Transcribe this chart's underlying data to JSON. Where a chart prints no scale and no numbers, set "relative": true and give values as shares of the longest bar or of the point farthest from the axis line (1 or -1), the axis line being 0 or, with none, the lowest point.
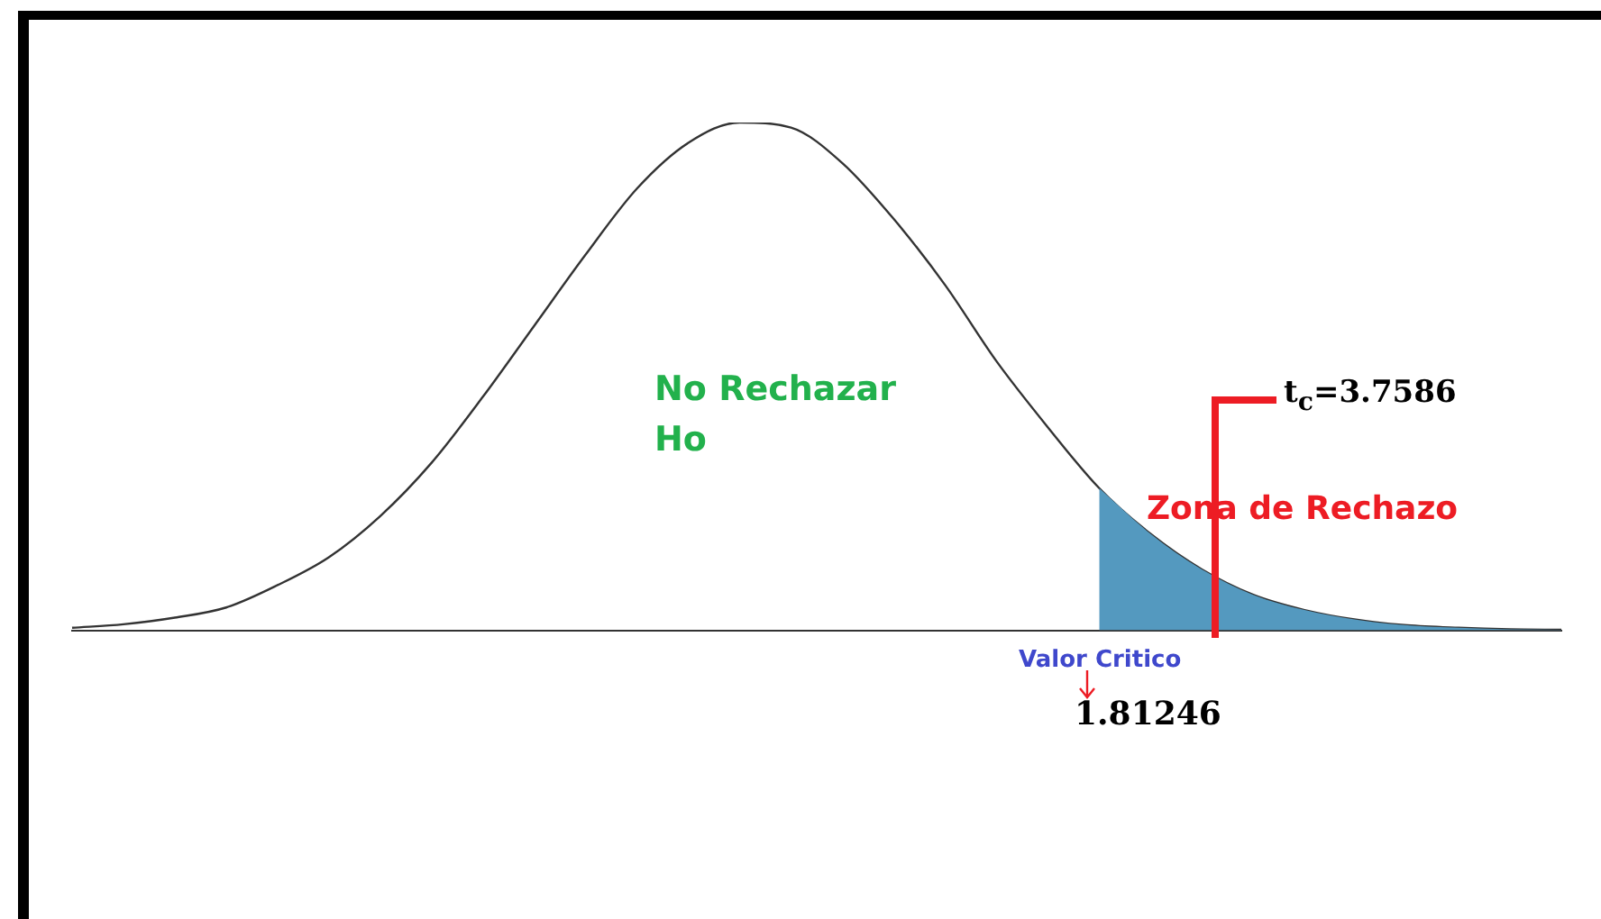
{
  "chart_data": {
    "type": "line",
    "relative": true,
    "legend": false,
    "grid": false,
    "marker": "none",
    "categories": [
      null,
      null,
      null,
      null,
      null,
      null,
      null,
      null,
      null,
      null,
      null,
      null,
      null,
      null,
      null,
      null,
      null,
      null,
      null,
      null,
      null,
      null,
      null,
      null,
      null,
      null,
      null,
      null,
      null,
      null
    ],
    "series": [
      {
        "type": "area",
        "color": "#5499bf",
        "values": [
          null,
          null,
          null,
          null,
          null,
          null,
          null,
          null,
          null,
          null,
          null,
          null,
          null,
          null,
          null,
          null,
          null,
          null,
          null,
          null,
          0.28,
          0.19,
          0.12,
          0.07,
          0.04,
          0.021,
          0.01,
          0.005,
          0.002,
          0.001
        ]
      },
      {
        "color": "#333333",
        "values": [
          0.005,
          0.012,
          0.025,
          0.045,
          0.089,
          0.144,
          0.225,
          0.33,
          0.46,
          0.6,
          0.74,
          0.87,
          0.96,
          1,
          0.99,
          0.92,
          0.81,
          0.68,
          0.53,
          0.4,
          0.28,
          0.19,
          0.12,
          0.07,
          0.04,
          0.021,
          0.01,
          0.005,
          0.002,
          0.001
        ]
      }
    ],
    "annotations": [
      "No Rechazar Ho",
      "Zona de Rechazo",
      "t$_{c}$=3.7586",
      "Valor Critico",
      "1.81246"
    ]
  }
}
